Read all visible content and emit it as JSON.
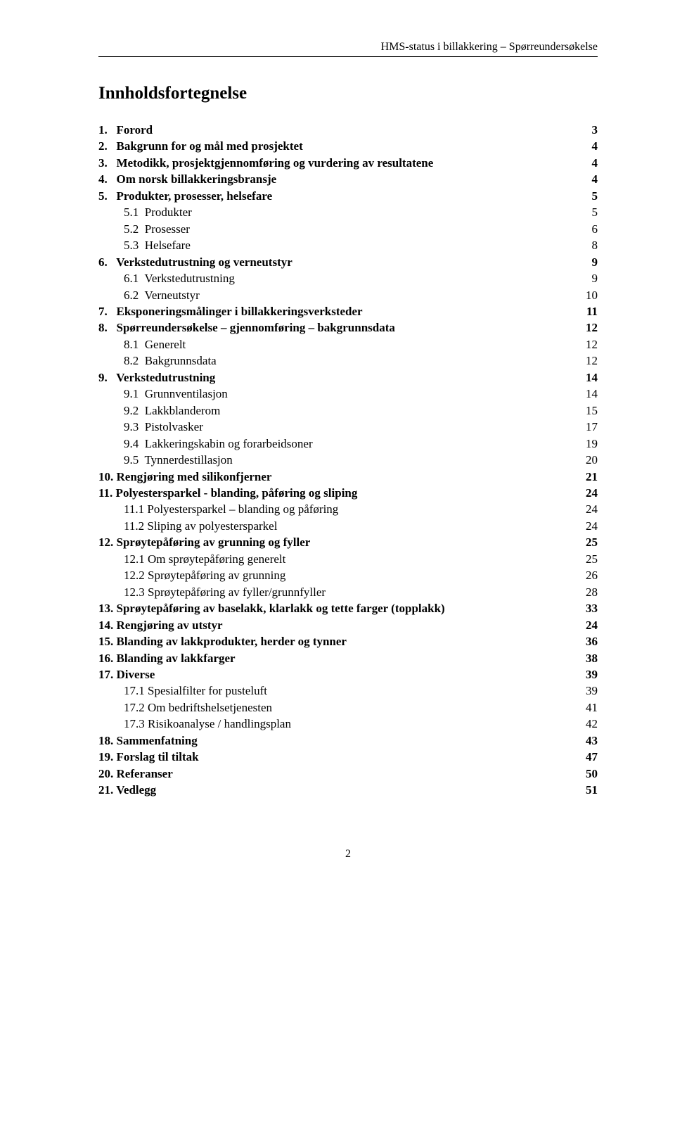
{
  "header": {
    "text": "HMS-status i billakkering – Spørreundersøkelse"
  },
  "title": "Innholdsfortegnelse",
  "toc": [
    {
      "label": "1.   Forord",
      "page": "3",
      "bold": true,
      "indent": 0
    },
    {
      "label": "2.   Bakgrunn for og mål med prosjektet",
      "page": "4",
      "bold": true,
      "indent": 0
    },
    {
      "label": "3.   Metodikk, prosjektgjennomføring og vurdering av resultatene",
      "page": "4",
      "bold": true,
      "indent": 0
    },
    {
      "label": "4.   Om norsk billakkeringsbransje",
      "page": "4",
      "bold": true,
      "indent": 0
    },
    {
      "label": "5.   Produkter, prosesser, helsefare",
      "page": "5",
      "bold": true,
      "indent": 0
    },
    {
      "label": "5.1  Produkter",
      "page": "5",
      "bold": false,
      "indent": 1
    },
    {
      "label": "5.2  Prosesser",
      "page": "6",
      "bold": false,
      "indent": 1
    },
    {
      "label": "5.3  Helsefare",
      "page": "8",
      "bold": false,
      "indent": 1
    },
    {
      "label": "6.   Verkstedutrustning og verneutstyr",
      "page": "9",
      "bold": true,
      "indent": 0
    },
    {
      "label": "6.1  Verkstedutrustning",
      "page": "9",
      "bold": false,
      "indent": 1
    },
    {
      "label": "6.2  Verneutstyr",
      "page": "10",
      "bold": false,
      "indent": 1
    },
    {
      "label": "7.   Eksponeringsmålinger i billakkeringsverksteder",
      "page": "11",
      "bold": true,
      "indent": 0
    },
    {
      "label": "8.   Spørreundersøkelse – gjennomføring – bakgrunnsdata",
      "page": "12",
      "bold": true,
      "indent": 0
    },
    {
      "label": "8.1  Generelt",
      "page": "12",
      "bold": false,
      "indent": 1
    },
    {
      "label": "8.2  Bakgrunnsdata",
      "page": "12",
      "bold": false,
      "indent": 1
    },
    {
      "label": "9.   Verkstedutrustning",
      "page": "14",
      "bold": true,
      "indent": 0
    },
    {
      "label": "9.1  Grunnventilasjon",
      "page": "14",
      "bold": false,
      "indent": 1
    },
    {
      "label": "9.2  Lakkblanderom",
      "page": "15",
      "bold": false,
      "indent": 1
    },
    {
      "label": "9.3  Pistolvasker",
      "page": "17",
      "bold": false,
      "indent": 1
    },
    {
      "label": "9.4  Lakkeringskabin og forarbeidsoner",
      "page": "19",
      "bold": false,
      "indent": 1
    },
    {
      "label": "9.5  Tynnerdestillasjon",
      "page": "20",
      "bold": false,
      "indent": 1
    },
    {
      "label": "10. Rengjøring med silikonfjerner",
      "page": "21",
      "bold": true,
      "indent": 0
    },
    {
      "label": "11. Polyestersparkel - blanding, påføring og sliping",
      "page": "24",
      "bold": true,
      "indent": 0
    },
    {
      "label": "11.1 Polyestersparkel – blanding og påføring",
      "page": "24",
      "bold": false,
      "indent": 1
    },
    {
      "label": "11.2 Sliping av polyestersparkel",
      "page": "24",
      "bold": false,
      "indent": 1
    },
    {
      "label": "12. Sprøytepåføring av grunning og fyller",
      "page": "25",
      "bold": true,
      "indent": 0
    },
    {
      "label": "12.1 Om sprøytepåføring generelt",
      "page": "25",
      "bold": false,
      "indent": 1
    },
    {
      "label": "12.2 Sprøytepåføring av grunning",
      "page": "26",
      "bold": false,
      "indent": 1
    },
    {
      "label": "12.3 Sprøytepåføring av fyller/grunnfyller",
      "page": "28",
      "bold": false,
      "indent": 1
    },
    {
      "label": "13. Sprøytepåføring av baselakk, klarlakk og tette farger (topplakk)",
      "page": "33",
      "bold": true,
      "indent": 0
    },
    {
      "label": "14. Rengjøring av utstyr",
      "page": "24",
      "bold": true,
      "indent": 0
    },
    {
      "label": "15. Blanding av lakkprodukter, herder og tynner",
      "page": "36",
      "bold": true,
      "indent": 0
    },
    {
      "label": "16. Blanding av lakkfarger",
      "page": "38",
      "bold": true,
      "indent": 0
    },
    {
      "label": "17. Diverse",
      "page": "39",
      "bold": true,
      "indent": 0
    },
    {
      "label": "17.1 Spesialfilter for pusteluft",
      "page": "39",
      "bold": false,
      "indent": 1
    },
    {
      "label": "17.2 Om bedriftshelsetjenesten",
      "page": "41",
      "bold": false,
      "indent": 1
    },
    {
      "label": "17.3 Risikoanalyse / handlingsplan",
      "page": "42",
      "bold": false,
      "indent": 1
    },
    {
      "label": "18. Sammenfatning",
      "page": "43",
      "bold": true,
      "indent": 0
    },
    {
      "label": "19. Forslag til tiltak",
      "page": "47",
      "bold": true,
      "indent": 0
    },
    {
      "label": "20. Referanser",
      "page": "50",
      "bold": true,
      "indent": 0
    },
    {
      "label": "21. Vedlegg",
      "page": "51",
      "bold": true,
      "indent": 0
    }
  ],
  "footer": {
    "page_number": "2"
  },
  "style": {
    "background": "#ffffff",
    "text_color": "#000000",
    "font_family": "Times New Roman",
    "title_fontsize": 25,
    "body_fontsize": 17,
    "header_fontsize": 16,
    "line_height": 1.38,
    "hr_color": "#000000"
  }
}
